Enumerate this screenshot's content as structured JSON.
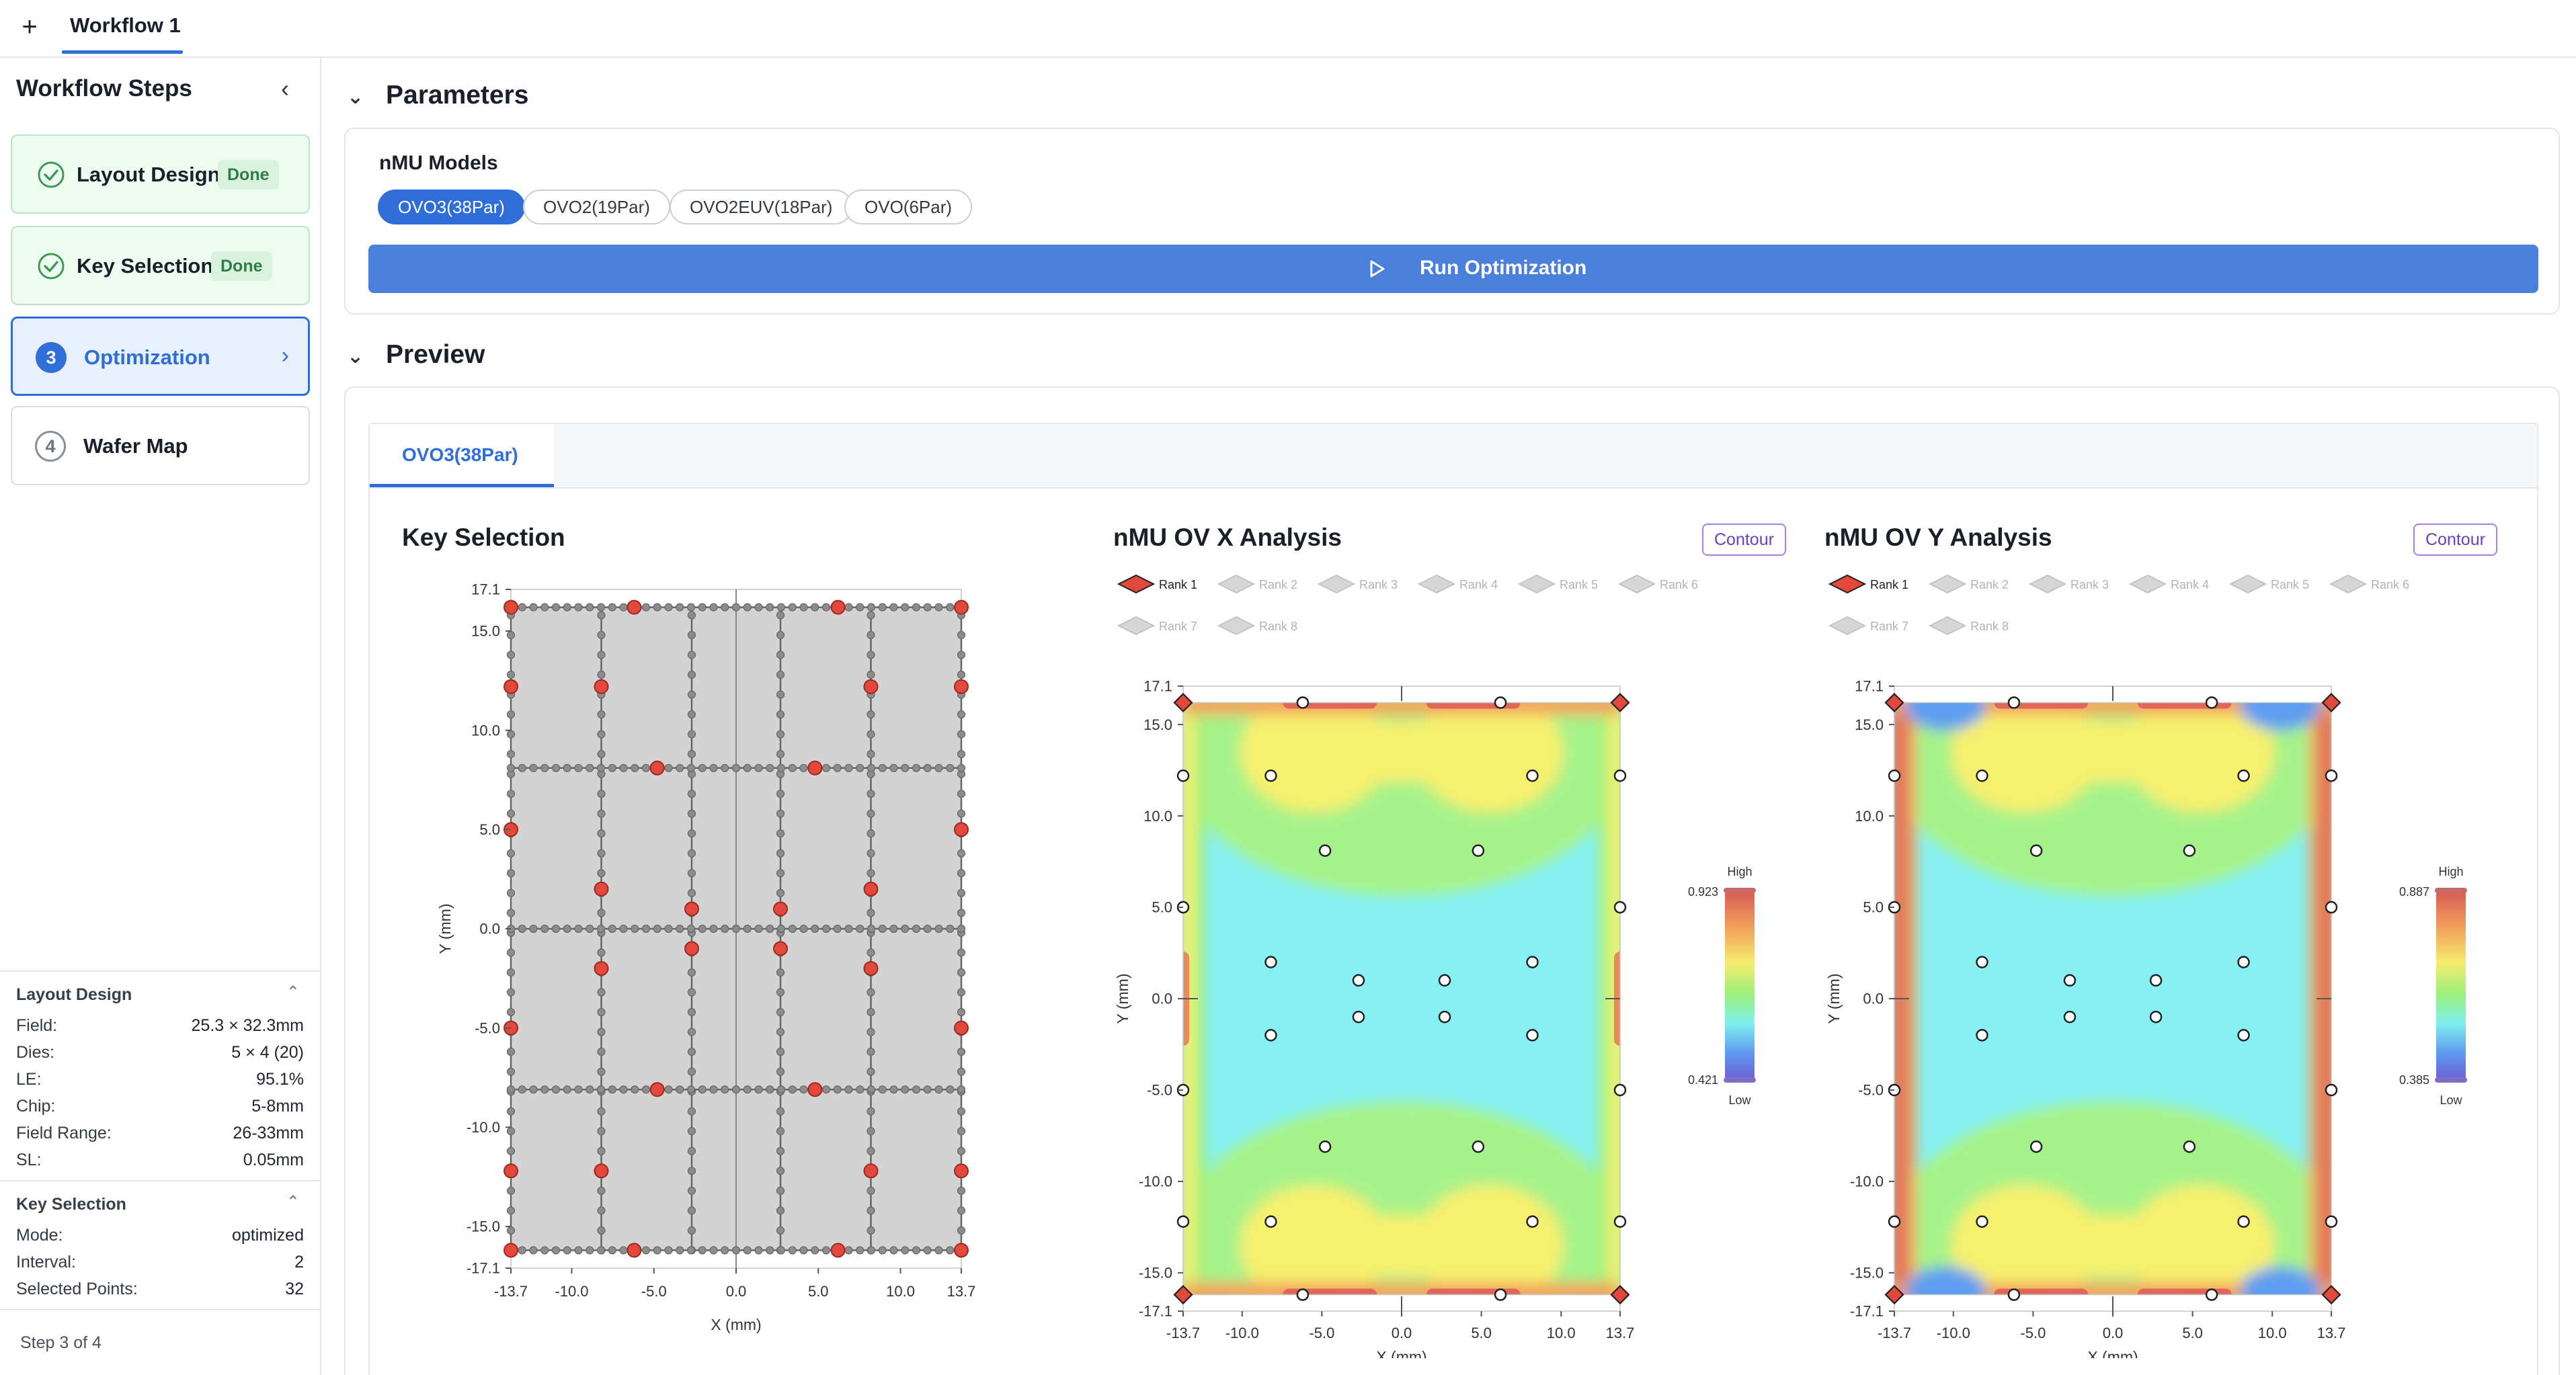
{
  "topbar": {
    "add_label": "+",
    "tab_label": "Workflow 1"
  },
  "sidebar": {
    "title": "Workflow Steps",
    "collapse_icon": "chevron-left-icon",
    "steps": [
      {
        "label": "Layout Design",
        "badge": "Done",
        "state": "done"
      },
      {
        "label": "Key Selection",
        "badge": "Done",
        "state": "done"
      },
      {
        "num": "3",
        "label": "Optimization",
        "state": "active"
      },
      {
        "num": "4",
        "label": "Wafer Map",
        "state": "idle"
      }
    ],
    "layout_design": {
      "title": "Layout Design",
      "rows": [
        {
          "k": "Field:",
          "v": "25.3 × 32.3mm"
        },
        {
          "k": "Dies:",
          "v": "5 × 4 (20)"
        },
        {
          "k": "LE:",
          "v": "95.1%"
        },
        {
          "k": "Chip:",
          "v": "5-8mm"
        },
        {
          "k": "Field Range:",
          "v": "26-33mm"
        },
        {
          "k": "SL:",
          "v": "0.05mm"
        }
      ]
    },
    "key_selection": {
      "title": "Key Selection",
      "rows": [
        {
          "k": "Mode:",
          "v": "optimized"
        },
        {
          "k": "Interval:",
          "v": "2"
        },
        {
          "k": "Selected Points:",
          "v": "32"
        }
      ]
    },
    "step_footer": "Step 3 of 4"
  },
  "parameters": {
    "title": "Parameters",
    "models_label": "nMU Models",
    "models": [
      "OVO3(38Par)",
      "OVO2(19Par)",
      "OVO2EUV(18Par)",
      "OVO(6Par)"
    ],
    "selected_model": "OVO3(38Par)",
    "run_label": "Run Optimization"
  },
  "preview": {
    "title": "Preview",
    "tab_label": "OVO3(38Par)",
    "key_selection_title": "Key Selection",
    "ovx_title": "nMU OV X Analysis",
    "ovy_title": "nMU OV Y Analysis",
    "contour_label": "Contour",
    "rank_labels": [
      "Rank 1",
      "Rank 2",
      "Rank 3",
      "Rank 4",
      "Rank 5",
      "Rank 6",
      "Rank 7",
      "Rank 8"
    ],
    "colorbar": {
      "high_label": "High",
      "low_label": "Low",
      "ovx": {
        "max": "0.923",
        "min": "0.421"
      },
      "ovy": {
        "max": "0.887",
        "min": "0.385"
      }
    }
  },
  "chart_data": [
    {
      "type": "scatter",
      "title": "Key Selection",
      "xlabel": "X (mm)",
      "ylabel": "Y (mm)",
      "xlim": [
        -13.7,
        13.7
      ],
      "ylim": [
        -17.1,
        17.1
      ],
      "x_ticks": [
        "-13.7",
        "-10.0",
        "-5.0",
        "0.0",
        "5.0",
        "10.0",
        "13.7"
      ],
      "y_ticks": [
        "17.1",
        "15.0",
        "10.0",
        "5.0",
        "0.0",
        "-5.0",
        "-10.0",
        "-15.0",
        "-17.1"
      ],
      "grid_x_lines": [
        -13.7,
        -8.2,
        -2.7,
        2.7,
        8.2,
        13.7
      ],
      "grid_y_lines": [
        -16.2,
        -8.1,
        0,
        8.1,
        16.2
      ],
      "selected_points": [
        [
          -13.7,
          16.2
        ],
        [
          -6.2,
          16.2
        ],
        [
          6.2,
          16.2
        ],
        [
          13.7,
          16.2
        ],
        [
          -13.7,
          12.2
        ],
        [
          -8.2,
          12.2
        ],
        [
          8.2,
          12.2
        ],
        [
          13.7,
          12.2
        ],
        [
          -4.8,
          8.1
        ],
        [
          4.8,
          8.1
        ],
        [
          -13.7,
          5.0
        ],
        [
          13.7,
          5.0
        ],
        [
          -8.2,
          2.0
        ],
        [
          -2.7,
          1.0
        ],
        [
          2.7,
          1.0
        ],
        [
          8.2,
          2.0
        ],
        [
          -2.7,
          -1.0
        ],
        [
          2.7,
          -1.0
        ],
        [
          -8.2,
          -2.0
        ],
        [
          8.2,
          -2.0
        ],
        [
          -13.7,
          -5.0
        ],
        [
          13.7,
          -5.0
        ],
        [
          -4.8,
          -8.1
        ],
        [
          4.8,
          -8.1
        ],
        [
          -13.7,
          -12.2
        ],
        [
          -8.2,
          -12.2
        ],
        [
          8.2,
          -12.2
        ],
        [
          13.7,
          -12.2
        ],
        [
          -13.7,
          -16.2
        ],
        [
          -6.2,
          -16.2
        ],
        [
          6.2,
          -16.2
        ],
        [
          13.7,
          -16.2
        ]
      ]
    },
    {
      "type": "heatmap",
      "title": "nMU OV X Analysis",
      "xlabel": "X (mm)",
      "ylabel": "Y (mm)",
      "xlim": [
        -13.7,
        13.7
      ],
      "ylim": [
        -17.1,
        17.1
      ],
      "x_ticks": [
        "-13.7",
        "-10.0",
        "-5.0",
        "0.0",
        "5.0",
        "10.0",
        "13.7"
      ],
      "y_ticks": [
        "17.1",
        "15.0",
        "10.0",
        "5.0",
        "0.0",
        "-5.0",
        "-10.0",
        "-15.0",
        "-17.1"
      ],
      "color_range": [
        0.421,
        0.923
      ],
      "rank1_corners": [
        [
          -13.7,
          16.2
        ],
        [
          13.7,
          16.2
        ],
        [
          -13.7,
          -16.2
        ],
        [
          13.7,
          -16.2
        ]
      ],
      "sample_points": [
        [
          -6.2,
          16.2
        ],
        [
          6.2,
          16.2
        ],
        [
          -13.7,
          12.2
        ],
        [
          -8.2,
          12.2
        ],
        [
          8.2,
          12.2
        ],
        [
          13.7,
          12.2
        ],
        [
          -4.8,
          8.1
        ],
        [
          4.8,
          8.1
        ],
        [
          -13.7,
          5.0
        ],
        [
          13.7,
          5.0
        ],
        [
          -8.2,
          2.0
        ],
        [
          -2.7,
          1.0
        ],
        [
          2.7,
          1.0
        ],
        [
          8.2,
          2.0
        ],
        [
          -2.7,
          -1.0
        ],
        [
          2.7,
          -1.0
        ],
        [
          -8.2,
          -2.0
        ],
        [
          8.2,
          -2.0
        ],
        [
          -13.7,
          -5.0
        ],
        [
          13.7,
          -5.0
        ],
        [
          -4.8,
          -8.1
        ],
        [
          4.8,
          -8.1
        ],
        [
          -13.7,
          -12.2
        ],
        [
          -8.2,
          -12.2
        ],
        [
          8.2,
          -12.2
        ],
        [
          13.7,
          -12.2
        ],
        [
          -6.2,
          -16.2
        ],
        [
          6.2,
          -16.2
        ]
      ]
    },
    {
      "type": "heatmap",
      "title": "nMU OV Y Analysis",
      "xlabel": "X (mm)",
      "ylabel": "Y (mm)",
      "xlim": [
        -13.7,
        13.7
      ],
      "ylim": [
        -17.1,
        17.1
      ],
      "x_ticks": [
        "-13.7",
        "-10.0",
        "-5.0",
        "0.0",
        "5.0",
        "10.0",
        "13.7"
      ],
      "y_ticks": [
        "17.1",
        "15.0",
        "10.0",
        "5.0",
        "0.0",
        "-5.0",
        "-10.0",
        "-15.0",
        "-17.1"
      ],
      "color_range": [
        0.385,
        0.887
      ],
      "rank1_corners": [
        [
          -13.7,
          16.2
        ],
        [
          13.7,
          16.2
        ],
        [
          -13.7,
          -16.2
        ],
        [
          13.7,
          -16.2
        ]
      ],
      "sample_points": [
        [
          -6.2,
          16.2
        ],
        [
          6.2,
          16.2
        ],
        [
          -13.7,
          12.2
        ],
        [
          -8.2,
          12.2
        ],
        [
          8.2,
          12.2
        ],
        [
          13.7,
          12.2
        ],
        [
          -4.8,
          8.1
        ],
        [
          4.8,
          8.1
        ],
        [
          -13.7,
          5.0
        ],
        [
          13.7,
          5.0
        ],
        [
          -8.2,
          2.0
        ],
        [
          -2.7,
          1.0
        ],
        [
          2.7,
          1.0
        ],
        [
          8.2,
          2.0
        ],
        [
          -2.7,
          -1.0
        ],
        [
          2.7,
          -1.0
        ],
        [
          -8.2,
          -2.0
        ],
        [
          8.2,
          -2.0
        ],
        [
          -13.7,
          -5.0
        ],
        [
          13.7,
          -5.0
        ],
        [
          -4.8,
          -8.1
        ],
        [
          4.8,
          -8.1
        ],
        [
          -13.7,
          -12.2
        ],
        [
          -8.2,
          -12.2
        ],
        [
          8.2,
          -12.2
        ],
        [
          13.7,
          -12.2
        ],
        [
          -6.2,
          -16.2
        ],
        [
          6.2,
          -16.2
        ]
      ]
    }
  ]
}
